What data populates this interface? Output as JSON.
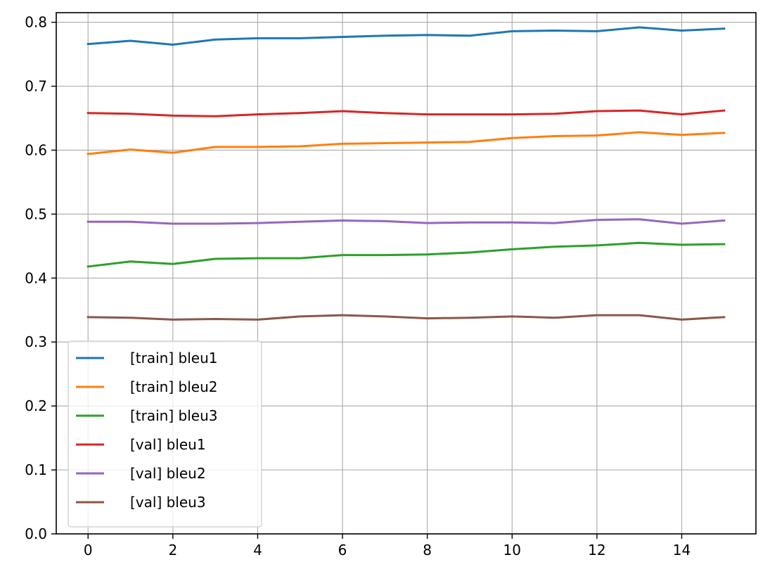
{
  "chart_data": {
    "type": "line",
    "title": "",
    "xlabel": "",
    "ylabel": "",
    "x": [
      0,
      1,
      2,
      3,
      4,
      5,
      6,
      7,
      8,
      9,
      10,
      11,
      12,
      13,
      14,
      15
    ],
    "xlim": [
      -0.75,
      15.75
    ],
    "ylim": [
      0.0,
      0.815
    ],
    "xticks": [
      0,
      2,
      4,
      6,
      8,
      10,
      12,
      14
    ],
    "yticks": [
      0.0,
      0.1,
      0.2,
      0.3,
      0.4,
      0.5,
      0.6,
      0.7,
      0.8
    ],
    "grid": true,
    "legend_position": "lower-left",
    "series": [
      {
        "name": "[train] bleu1",
        "color": "#1f77b4",
        "values": [
          0.766,
          0.771,
          0.765,
          0.773,
          0.775,
          0.775,
          0.777,
          0.779,
          0.78,
          0.779,
          0.786,
          0.787,
          0.786,
          0.792,
          0.787,
          0.79
        ]
      },
      {
        "name": "[train] bleu2",
        "color": "#ff7f0e",
        "values": [
          0.594,
          0.601,
          0.596,
          0.605,
          0.605,
          0.606,
          0.61,
          0.611,
          0.612,
          0.613,
          0.619,
          0.622,
          0.623,
          0.628,
          0.624,
          0.627
        ]
      },
      {
        "name": "[train] bleu3",
        "color": "#2ca02c",
        "values": [
          0.418,
          0.426,
          0.422,
          0.43,
          0.431,
          0.431,
          0.436,
          0.436,
          0.437,
          0.44,
          0.445,
          0.449,
          0.451,
          0.455,
          0.452,
          0.453
        ]
      },
      {
        "name": "[val] bleu1",
        "color": "#d62728",
        "values": [
          0.658,
          0.657,
          0.654,
          0.653,
          0.656,
          0.658,
          0.661,
          0.658,
          0.656,
          0.656,
          0.656,
          0.657,
          0.661,
          0.662,
          0.656,
          0.662
        ]
      },
      {
        "name": "[val] bleu2",
        "color": "#9467bd",
        "values": [
          0.488,
          0.488,
          0.485,
          0.485,
          0.486,
          0.488,
          0.49,
          0.489,
          0.486,
          0.487,
          0.487,
          0.486,
          0.491,
          0.492,
          0.485,
          0.49
        ]
      },
      {
        "name": "[val] bleu3",
        "color": "#8c564b",
        "values": [
          0.339,
          0.338,
          0.335,
          0.336,
          0.335,
          0.34,
          0.342,
          0.34,
          0.337,
          0.338,
          0.34,
          0.338,
          0.342,
          0.342,
          0.335,
          0.339
        ]
      }
    ]
  }
}
